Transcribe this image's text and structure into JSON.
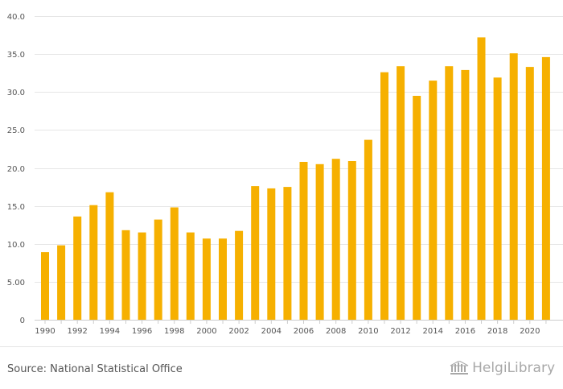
{
  "chart_data": {
    "type": "bar",
    "title": "",
    "xlabel": "",
    "ylabel": "",
    "ylim": [
      0,
      40
    ],
    "y_ticks": [
      "0",
      "5.00",
      "10.0",
      "15.0",
      "20.0",
      "25.0",
      "30.0",
      "35.0",
      "40.0"
    ],
    "y_tick_values": [
      0,
      5,
      10,
      15,
      20,
      25,
      30,
      35,
      40
    ],
    "x_tick_labels": [
      "1990",
      "1992",
      "1994",
      "1996",
      "1998",
      "2000",
      "2002",
      "2004",
      "2006",
      "2008",
      "2010",
      "2012",
      "2014",
      "2016",
      "2018",
      "2020"
    ],
    "categories": [
      "1990",
      "1991",
      "1992",
      "1993",
      "1994",
      "1995",
      "1996",
      "1997",
      "1998",
      "1999",
      "2000",
      "2001",
      "2002",
      "2003",
      "2004",
      "2005",
      "2006",
      "2007",
      "2008",
      "2009",
      "2010",
      "2011",
      "2012",
      "2013",
      "2014",
      "2015",
      "2016",
      "2017",
      "2018",
      "2019",
      "2020",
      "2021"
    ],
    "values": [
      8.9,
      9.8,
      13.6,
      15.1,
      16.8,
      11.8,
      11.5,
      13.2,
      14.8,
      11.5,
      10.7,
      10.7,
      11.7,
      17.6,
      17.3,
      17.5,
      20.8,
      20.5,
      21.2,
      20.9,
      23.7,
      32.6,
      33.4,
      29.5,
      31.5,
      33.4,
      32.9,
      37.2,
      31.9,
      35.1,
      33.3,
      34.6
    ],
    "grid": true,
    "bar_color": "#f6b000"
  },
  "footer": {
    "source": "Source: National Statistical Office",
    "brand": "HelgiLibrary"
  }
}
